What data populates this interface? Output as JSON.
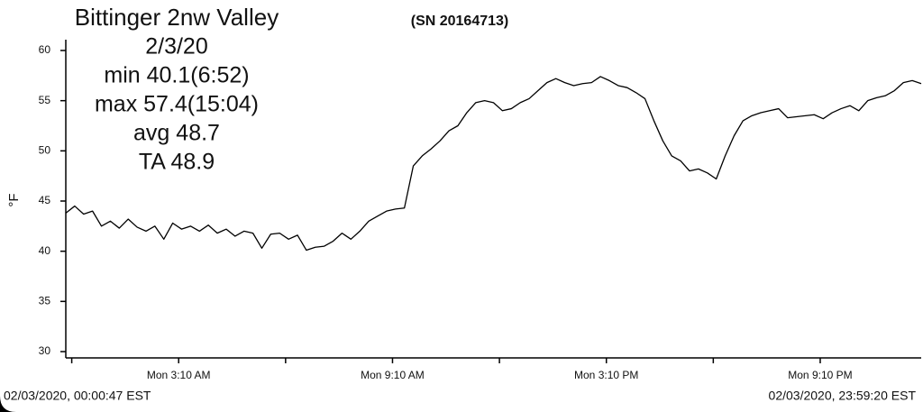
{
  "chart_data": {
    "type": "line",
    "title": "Bittinger 2nw Valley",
    "serial": "(SN 20164713)",
    "stats": [
      "2/3/20",
      "min 40.1(6:52)",
      "max 57.4(15:04)",
      "avg  48.7",
      "TA 48.9"
    ],
    "ylabel": "°F",
    "start_label": "02/03/2020, 00:00:47 EST",
    "end_label": "02/03/2020, 23:59:20 EST",
    "xlim": [
      0,
      24
    ],
    "ylim": [
      30,
      60
    ],
    "yticks": [
      30,
      35,
      40,
      45,
      50,
      55,
      60
    ],
    "xticks": [
      {
        "value": 3.1667,
        "label": "Mon 3:10 AM"
      },
      {
        "value": 9.1667,
        "label": "Mon 9:10 AM"
      },
      {
        "value": 15.1667,
        "label": "Mon 3:10 PM"
      },
      {
        "value": 21.1667,
        "label": "Mon 9:10 PM"
      }
    ],
    "xminorticks": [
      0.1667,
      6.1667,
      12.1667,
      18.1667
    ],
    "grid": false,
    "x": [
      0,
      0.25,
      0.5,
      0.75,
      1,
      1.25,
      1.5,
      1.75,
      2,
      2.25,
      2.5,
      2.75,
      3,
      3.25,
      3.5,
      3.75,
      4,
      4.25,
      4.5,
      4.75,
      5,
      5.25,
      5.5,
      5.75,
      6,
      6.25,
      6.5,
      6.75,
      7,
      7.25,
      7.5,
      7.75,
      8,
      8.25,
      8.5,
      8.75,
      9,
      9.25,
      9.5,
      9.75,
      10,
      10.25,
      10.5,
      10.75,
      11,
      11.25,
      11.5,
      11.75,
      12,
      12.25,
      12.5,
      12.75,
      13,
      13.25,
      13.5,
      13.75,
      14,
      14.25,
      14.5,
      14.75,
      15,
      15.25,
      15.5,
      15.75,
      16,
      16.25,
      16.5,
      16.75,
      17,
      17.25,
      17.5,
      17.75,
      18,
      18.25,
      18.5,
      18.75,
      19,
      19.25,
      19.5,
      19.75,
      20,
      20.25,
      20.5,
      20.75,
      21,
      21.25,
      21.5,
      21.75,
      22,
      22.25,
      22.5,
      22.75,
      23,
      23.25,
      23.5,
      23.75,
      24
    ],
    "series": [
      {
        "color": "#000000",
        "values": [
          43.8,
          44.5,
          43.7,
          44.0,
          42.5,
          43.0,
          42.3,
          43.2,
          42.4,
          42.0,
          42.5,
          41.2,
          42.8,
          42.2,
          42.5,
          42.0,
          42.6,
          41.8,
          42.2,
          41.5,
          42.0,
          41.8,
          40.3,
          41.7,
          41.8,
          41.2,
          41.6,
          40.1,
          40.4,
          40.5,
          41.0,
          41.8,
          41.2,
          42.0,
          43.0,
          43.5,
          44.0,
          44.2,
          44.3,
          48.5,
          49.5,
          50.2,
          51.0,
          52.0,
          52.5,
          53.8,
          54.8,
          55.0,
          54.8,
          54.0,
          54.2,
          54.8,
          55.2,
          56.0,
          56.8,
          57.2,
          56.8,
          56.5,
          56.7,
          56.8,
          57.4,
          57.0,
          56.5,
          56.3,
          55.8,
          55.2,
          53.0,
          51.0,
          49.5,
          49.0,
          48.0,
          48.2,
          47.8,
          47.2,
          49.5,
          51.5,
          53.0,
          53.5,
          53.8,
          54.0,
          54.2,
          53.3,
          53.4,
          53.5,
          53.6,
          53.2,
          53.8,
          54.2,
          54.5,
          54.0,
          55.0,
          55.3,
          55.5,
          56.0,
          56.8,
          57.0,
          56.7
        ]
      }
    ]
  }
}
